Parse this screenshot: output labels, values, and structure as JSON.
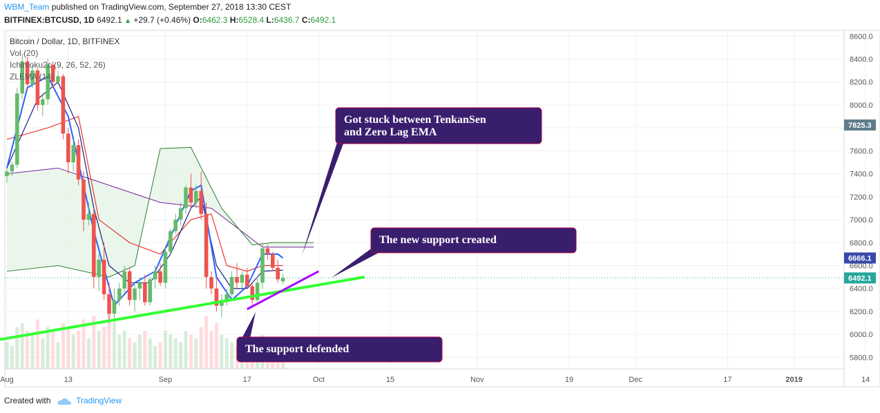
{
  "header": {
    "author": "WBM_Team",
    "published": "published on TradingView.com, September 27, 2018 13:30 CEST"
  },
  "symbol_line": {
    "symbol": "BITFINEX:BTCUSD, 1D",
    "last": "6492.1",
    "change": "+29.7 (+0.46%)",
    "o_label": "O:",
    "o": "6462.3",
    "h_label": "H:",
    "h": "6528.4",
    "l_label": "L:",
    "l": "6436.7",
    "c_label": "C:",
    "c": "6492.1"
  },
  "legend": {
    "title": "Bitcoin / Dollar, 1D, BITFINEX",
    "vol": "Vol (20)",
    "ichimoku": "Ichimoku2c (9, 26, 52, 26)",
    "zlema": "ZLEMA (14)"
  },
  "annotations": {
    "stuck": "Got stuck between TenkanSen and Zero Lag EMA",
    "new_support": "The new support created",
    "defended": "The support defended"
  },
  "price_tags": {
    "upper": "7825.3",
    "zlema": "6666.1",
    "last": "6492.1"
  },
  "footer": {
    "created_with": "Created with",
    "brand": "TradingView"
  },
  "colors": {
    "up": "#66bb6a",
    "down": "#ef5350",
    "tenkan": "#2962ff",
    "kijun": "#e53935",
    "cloud": "#e8f5e9",
    "support": "#33ff33",
    "new_support": "#9c27b0",
    "callout": "#3a1e6e"
  },
  "chart_data": {
    "type": "candlestick",
    "title": "Bitcoin / Dollar, 1D, BITFINEX",
    "y_axis": {
      "ticks": [
        5800,
        6000,
        6200,
        6400,
        6600,
        6800,
        7000,
        7200,
        7400,
        7600,
        7800,
        8000,
        8200,
        8400,
        8600
      ],
      "tick_labels": [
        "5800.0",
        "6000.0",
        "6200.0",
        "6400.0",
        "6600.0",
        "6800.0",
        "7000.0",
        "7200.0",
        "7400.0",
        "7600.0",
        "7800.0",
        "8000.0",
        "8200.0",
        "8400.0",
        "8600.0"
      ],
      "range": [
        5700,
        8650
      ]
    },
    "x_axis": {
      "labels": [
        "Aug",
        "13",
        "Sep",
        "17",
        "Oct",
        "15",
        "Nov",
        "19",
        "Dec",
        "17",
        "2019",
        "14"
      ],
      "label_days": [
        0,
        12,
        31,
        47,
        61,
        75,
        92,
        110,
        123,
        141,
        154,
        168
      ]
    },
    "first_day": 0,
    "day_date_note": "",
    "candles": [
      [
        7380,
        7450,
        7320,
        7420
      ],
      [
        7420,
        7500,
        7380,
        7480
      ],
      [
        7480,
        8150,
        7450,
        8100
      ],
      [
        8100,
        8450,
        8050,
        8380
      ],
      [
        8380,
        8420,
        8120,
        8180
      ],
      [
        8180,
        8350,
        8150,
        8300
      ],
      [
        8300,
        8320,
        7950,
        8000
      ],
      [
        8000,
        8100,
        7900,
        8050
      ],
      [
        8050,
        8400,
        8000,
        8350
      ],
      [
        8350,
        8380,
        8150,
        8200
      ],
      [
        8200,
        8300,
        8180,
        8250
      ],
      [
        8250,
        8270,
        7700,
        7750
      ],
      [
        7750,
        7800,
        7400,
        7500
      ],
      [
        7500,
        7700,
        7420,
        7650
      ],
      [
        7650,
        7700,
        7300,
        7350
      ],
      [
        7350,
        7420,
        6900,
        7000
      ],
      [
        7000,
        7150,
        6950,
        7050
      ],
      [
        7050,
        7100,
        6400,
        6500
      ],
      [
        6500,
        6700,
        6380,
        6650
      ],
      [
        6650,
        6800,
        6300,
        6350
      ],
      [
        6350,
        6450,
        6100,
        6180
      ],
      [
        6180,
        6400,
        6100,
        6300
      ],
      [
        6300,
        6450,
        6250,
        6400
      ],
      [
        6400,
        6600,
        6350,
        6550
      ],
      [
        6550,
        6580,
        6250,
        6300
      ],
      [
        6300,
        6450,
        6200,
        6400
      ],
      [
        6400,
        6500,
        6300,
        6450
      ],
      [
        6450,
        6520,
        6250,
        6280
      ],
      [
        6280,
        6500,
        6250,
        6480
      ],
      [
        6480,
        6600,
        6400,
        6550
      ],
      [
        6550,
        6620,
        6420,
        6450
      ],
      [
        6450,
        6750,
        6400,
        6720
      ],
      [
        6720,
        6920,
        6700,
        6900
      ],
      [
        6900,
        7050,
        6880,
        7000
      ],
      [
        7000,
        7150,
        6950,
        7100
      ],
      [
        7100,
        7300,
        7050,
        7280
      ],
      [
        7280,
        7400,
        7100,
        7150
      ],
      [
        7150,
        7300,
        7100,
        7250
      ],
      [
        7250,
        7420,
        7000,
        7050
      ],
      [
        7050,
        7150,
        6400,
        6500
      ],
      [
        6500,
        6550,
        6350,
        6400
      ],
      [
        6400,
        6500,
        6200,
        6250
      ],
      [
        6250,
        6350,
        6150,
        6300
      ],
      [
        6300,
        6400,
        6250,
        6350
      ],
      [
        6350,
        6550,
        6300,
        6500
      ],
      [
        6500,
        6620,
        6400,
        6450
      ],
      [
        6450,
        6550,
        6400,
        6520
      ],
      [
        6520,
        6580,
        6400,
        6420
      ],
      [
        6420,
        6450,
        6250,
        6300
      ],
      [
        6300,
        6500,
        6280,
        6450
      ],
      [
        6450,
        6800,
        6400,
        6750
      ],
      [
        6750,
        6780,
        6650,
        6700
      ],
      [
        6700,
        6720,
        6550,
        6580
      ],
      [
        6580,
        6650,
        6450,
        6480
      ],
      [
        6462.3,
        6528.4,
        6436.7,
        6492.1
      ]
    ],
    "tenkan": [
      [
        0,
        7450
      ],
      [
        6,
        8050
      ],
      [
        10,
        8200
      ],
      [
        14,
        7800
      ],
      [
        17,
        7100
      ],
      [
        20,
        6600
      ],
      [
        24,
        6450
      ],
      [
        28,
        6450
      ],
      [
        32,
        6700
      ],
      [
        36,
        7100
      ],
      [
        38,
        7200
      ],
      [
        41,
        6600
      ],
      [
        44,
        6400
      ],
      [
        47,
        6400
      ],
      [
        50,
        6550
      ],
      [
        54,
        6560
      ]
    ],
    "kijun": [
      [
        0,
        7700
      ],
      [
        8,
        7800
      ],
      [
        14,
        7900
      ],
      [
        18,
        7000
      ],
      [
        24,
        6800
      ],
      [
        30,
        6700
      ],
      [
        36,
        7000
      ],
      [
        40,
        7050
      ],
      [
        43,
        6600
      ],
      [
        47,
        6550
      ],
      [
        50,
        6600
      ],
      [
        54,
        6600
      ]
    ],
    "zlema": [
      [
        0,
        7450
      ],
      [
        4,
        8150
      ],
      [
        8,
        8250
      ],
      [
        12,
        7900
      ],
      [
        17,
        6900
      ],
      [
        21,
        6250
      ],
      [
        25,
        6450
      ],
      [
        29,
        6550
      ],
      [
        33,
        6950
      ],
      [
        36,
        7250
      ],
      [
        38,
        7300
      ],
      [
        41,
        6500
      ],
      [
        44,
        6300
      ],
      [
        47,
        6420
      ],
      [
        50,
        6700
      ],
      [
        53,
        6700
      ],
      [
        54,
        6666.1
      ]
    ],
    "senkou_a": [
      [
        0,
        7400
      ],
      [
        10,
        7450
      ],
      [
        20,
        7300
      ],
      [
        30,
        7150
      ],
      [
        40,
        7100
      ],
      [
        50,
        6760
      ],
      [
        60,
        6760
      ]
    ],
    "senkou_b": [
      [
        0,
        6550
      ],
      [
        10,
        6600
      ],
      [
        20,
        6500
      ],
      [
        25,
        6600
      ],
      [
        30,
        7620
      ],
      [
        36,
        7630
      ],
      [
        42,
        7100
      ],
      [
        48,
        6780
      ],
      [
        52,
        6800
      ],
      [
        60,
        6800
      ]
    ],
    "volume": [
      0.35,
      0.3,
      0.55,
      0.6,
      0.5,
      0.45,
      0.65,
      0.4,
      0.55,
      0.5,
      0.35,
      0.6,
      0.55,
      0.45,
      0.5,
      0.65,
      0.4,
      0.7,
      0.5,
      0.55,
      0.75,
      0.6,
      0.45,
      0.5,
      0.4,
      0.35,
      0.45,
      0.5,
      0.4,
      0.3,
      0.35,
      0.5,
      0.45,
      0.4,
      0.35,
      0.5,
      0.45,
      0.4,
      0.55,
      0.7,
      0.5,
      0.6,
      0.45,
      0.4,
      0.35,
      0.3,
      0.25,
      0.3,
      0.4,
      0.35,
      0.45,
      0.3,
      0.25,
      0.2,
      0.2
    ],
    "support_line": {
      "start": [
        -2,
        5950
      ],
      "end": [
        70,
        6500
      ]
    },
    "new_support_line": {
      "start": [
        47,
        6220
      ],
      "end": [
        61,
        6550
      ]
    },
    "last_price": 6492.1
  }
}
